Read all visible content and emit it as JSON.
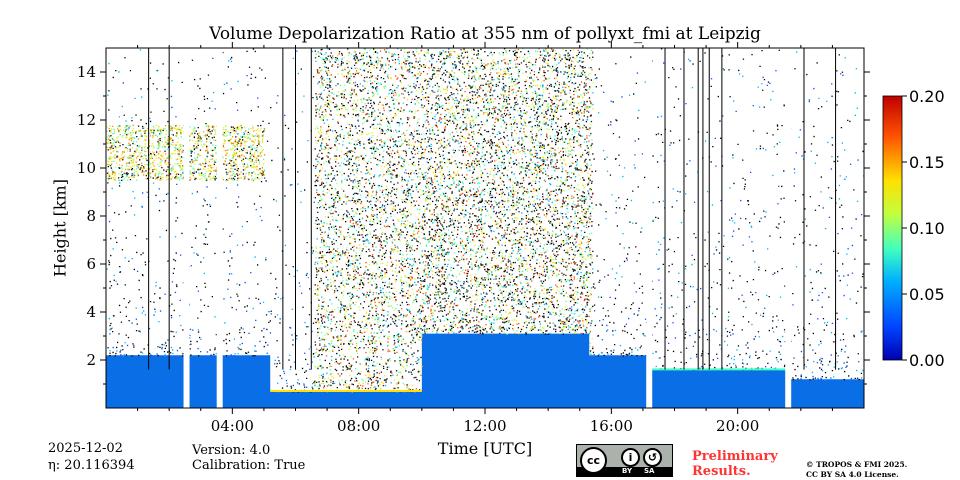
{
  "chart_data": {
    "type": "heatmap",
    "title": "Volume Depolarization Ratio at 355 nm of pollyxt_fmi at Leipzig",
    "xlabel": "Time [UTC]",
    "ylabel": "Height [km]",
    "xlim_hours": [
      0,
      24
    ],
    "ylim_km": [
      0,
      15
    ],
    "x_ticks": [
      {
        "hour": 4,
        "label": "04:00"
      },
      {
        "hour": 8,
        "label": "08:00"
      },
      {
        "hour": 12,
        "label": "12:00"
      },
      {
        "hour": 16,
        "label": "16:00"
      },
      {
        "hour": 20,
        "label": "20:00"
      }
    ],
    "y_ticks": [
      {
        "value": 2,
        "label": "2"
      },
      {
        "value": 4,
        "label": "4"
      },
      {
        "value": 6,
        "label": "6"
      },
      {
        "value": 8,
        "label": "8"
      },
      {
        "value": 10,
        "label": "10"
      },
      {
        "value": 12,
        "label": "12"
      },
      {
        "value": 14,
        "label": "14"
      }
    ],
    "colorbar": {
      "colormap": "jet",
      "range": [
        0.0,
        0.2
      ],
      "ticks": [
        "0.00",
        "0.05",
        "0.10",
        "0.15",
        "0.20"
      ],
      "colors": [
        "#0000b0",
        "#0050ff",
        "#00c0ff",
        "#40ffc0",
        "#c0ff40",
        "#ffd000",
        "#ff5000",
        "#c00000"
      ]
    },
    "features": {
      "boundary_layer_top_km": [
        {
          "from_h": 0.0,
          "to_h": 5.2,
          "top": 2.2
        },
        {
          "from_h": 5.2,
          "to_h": 10.0,
          "top": 0.7
        },
        {
          "from_h": 10.0,
          "to_h": 15.3,
          "top": 3.1
        },
        {
          "from_h": 15.3,
          "to_h": 17.2,
          "top": 2.2
        },
        {
          "from_h": 17.2,
          "to_h": 21.6,
          "top": 1.6
        },
        {
          "from_h": 21.6,
          "to_h": 24.0,
          "top": 1.2
        }
      ],
      "cirrus_layer": {
        "from_h": 0.0,
        "to_h": 5.0,
        "bottom_km": 9.5,
        "top_km": 11.8
      },
      "noisy_daytime_window": {
        "from_h": 6.6,
        "to_h": 15.4
      },
      "missing_data_gaps_h": [
        2.55,
        3.6,
        17.2,
        21.6
      ]
    }
  },
  "meta": {
    "date": "2025-12-02",
    "eta": "η: 20.116394",
    "version": "Version: 4.0",
    "calibration": "Calibration: True",
    "preliminary_line1": "Preliminary",
    "preliminary_line2": "Results.",
    "copyright_line1": "© TROPOS & FMI 2025.",
    "copyright_line2": "CC BY SA 4.0 License.",
    "license_badge": {
      "cc": "cc",
      "by": "BY",
      "sa": "SA"
    }
  }
}
